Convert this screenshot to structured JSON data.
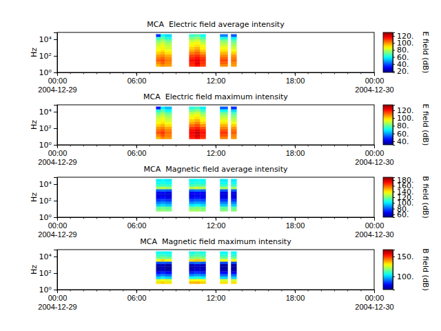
{
  "chart_data": [
    {
      "type": "heatmap",
      "title": "MCA  Electric field average intensity",
      "y_label": "Hz",
      "colorbar_label": "E field (dB)",
      "log": "y",
      "xlim": [
        "2004-12-29T00:00",
        "2004-12-30T00:00"
      ],
      "xticks": [
        {
          "value": "2004-12-29T00:00",
          "label": "00:00\n2004-12-29"
        },
        {
          "value": "2004-12-29T06:00",
          "label": "06:00"
        },
        {
          "value": "2004-12-29T12:00",
          "label": "12:00"
        },
        {
          "value": "2004-12-29T18:00",
          "label": "18:00"
        },
        {
          "value": "2004-12-30T00:00",
          "label": "00:00\n2004-12-30"
        }
      ],
      "ylim": [
        1,
        68000
      ],
      "yticks": [
        {
          "value": 1,
          "label": "10⁰"
        },
        {
          "value": 100,
          "label": "10²"
        },
        {
          "value": 10000,
          "label": "10⁴"
        }
      ],
      "x_start": [
        "2004-12-29T07:30",
        "2004-12-29T07:50",
        "2004-12-29T08:10",
        "2004-12-29T10:00",
        "2004-12-29T10:25",
        "2004-12-29T10:50",
        "2004-12-29T12:20",
        "2004-12-29T13:10"
      ],
      "x_end": [
        "2004-12-29T07:50",
        "2004-12-29T08:10",
        "2004-12-29T08:40",
        "2004-12-29T10:25",
        "2004-12-29T10:50",
        "2004-12-29T11:15",
        "2004-12-29T12:55",
        "2004-12-29T13:35"
      ],
      "y_edges": [
        5,
        10,
        20,
        40,
        80,
        160,
        320,
        630,
        1260,
        2500,
        5000,
        10000,
        20000,
        40000
      ],
      "values": [
        [
          95,
          100,
          98,
          110,
          115,
          108,
          100,
          98
        ],
        [
          100,
          105,
          100,
          112,
          118,
          110,
          105,
          100
        ],
        [
          105,
          108,
          102,
          115,
          118,
          112,
          108,
          104
        ],
        [
          102,
          105,
          100,
          112,
          115,
          110,
          105,
          102
        ],
        [
          98,
          100,
          96,
          108,
          110,
          105,
          100,
          98
        ],
        [
          92,
          95,
          90,
          102,
          105,
          98,
          95,
          92
        ],
        [
          88,
          90,
          86,
          96,
          100,
          92,
          90,
          86
        ],
        [
          85,
          88,
          82,
          92,
          95,
          88,
          86,
          82
        ],
        [
          82,
          85,
          80,
          88,
          90,
          85,
          82,
          78
        ],
        [
          78,
          82,
          76,
          85,
          88,
          80,
          78,
          74
        ],
        [
          72,
          76,
          70,
          80,
          82,
          75,
          72,
          68
        ],
        [
          65,
          70,
          62,
          72,
          75,
          68,
          62,
          58
        ],
        [
          35,
          60,
          55,
          65,
          68,
          60,
          45,
          40
        ]
      ],
      "clim": [
        16,
        130
      ],
      "cticks": [
        {
          "value": 20,
          "label": "20."
        },
        {
          "value": 40,
          "label": "40."
        },
        {
          "value": 60,
          "label": "60."
        },
        {
          "value": 80,
          "label": "80."
        },
        {
          "value": 100,
          "label": "100."
        },
        {
          "value": 120,
          "label": "120."
        }
      ]
    },
    {
      "type": "heatmap",
      "title": "MCA  Electric field maximum intensity",
      "y_label": "Hz",
      "colorbar_label": "E field (dB)",
      "log": "y",
      "xlim": [
        "2004-12-29T00:00",
        "2004-12-30T00:00"
      ],
      "xticks": [
        {
          "value": "2004-12-29T00:00",
          "label": "00:00\n2004-12-29"
        },
        {
          "value": "2004-12-29T06:00",
          "label": "06:00"
        },
        {
          "value": "2004-12-29T12:00",
          "label": "12:00"
        },
        {
          "value": "2004-12-29T18:00",
          "label": "18:00"
        },
        {
          "value": "2004-12-30T00:00",
          "label": "00:00\n2004-12-30"
        }
      ],
      "ylim": [
        1,
        68000
      ],
      "yticks": [
        {
          "value": 1,
          "label": "10⁰"
        },
        {
          "value": 100,
          "label": "10²"
        },
        {
          "value": 10000,
          "label": "10⁴"
        }
      ],
      "x_start": [
        "2004-12-29T07:30",
        "2004-12-29T07:50",
        "2004-12-29T08:10",
        "2004-12-29T10:00",
        "2004-12-29T10:25",
        "2004-12-29T10:50",
        "2004-12-29T12:20",
        "2004-12-29T13:10"
      ],
      "x_end": [
        "2004-12-29T07:50",
        "2004-12-29T08:10",
        "2004-12-29T08:40",
        "2004-12-29T10:25",
        "2004-12-29T10:50",
        "2004-12-29T11:15",
        "2004-12-29T12:55",
        "2004-12-29T13:35"
      ],
      "y_edges": [
        5,
        10,
        20,
        40,
        80,
        160,
        320,
        630,
        1260,
        2500,
        5000,
        10000,
        20000,
        40000
      ],
      "values": [
        [
          103,
          108,
          106,
          118,
          122,
          116,
          108,
          106
        ],
        [
          108,
          113,
          108,
          120,
          125,
          118,
          113,
          108
        ],
        [
          113,
          116,
          110,
          122,
          126,
          120,
          116,
          112
        ],
        [
          110,
          113,
          108,
          120,
          123,
          118,
          113,
          110
        ],
        [
          106,
          108,
          104,
          116,
          118,
          113,
          108,
          106
        ],
        [
          100,
          103,
          98,
          110,
          113,
          106,
          103,
          100
        ],
        [
          96,
          98,
          94,
          104,
          108,
          100,
          98,
          94
        ],
        [
          93,
          96,
          90,
          100,
          103,
          96,
          94,
          90
        ],
        [
          90,
          93,
          88,
          96,
          98,
          93,
          90,
          86
        ],
        [
          86,
          90,
          84,
          93,
          96,
          88,
          86,
          82
        ],
        [
          80,
          84,
          78,
          88,
          90,
          83,
          80,
          76
        ],
        [
          73,
          78,
          70,
          80,
          83,
          76,
          70,
          66
        ],
        [
          45,
          68,
          63,
          73,
          76,
          68,
          53,
          48
        ]
      ],
      "clim": [
        31,
        134
      ],
      "cticks": [
        {
          "value": 40,
          "label": "40."
        },
        {
          "value": 60,
          "label": "60."
        },
        {
          "value": 80,
          "label": "80."
        },
        {
          "value": 100,
          "label": "100."
        },
        {
          "value": 120,
          "label": "120."
        }
      ]
    },
    {
      "type": "heatmap",
      "title": "MCA  Magnetic field average intensity",
      "y_label": "Hz",
      "colorbar_label": "B field (dB)",
      "log": "y",
      "xlim": [
        "2004-12-29T00:00",
        "2004-12-30T00:00"
      ],
      "xticks": [
        {
          "value": "2004-12-29T00:00",
          "label": "00:00\n2004-12-29"
        },
        {
          "value": "2004-12-29T06:00",
          "label": "06:00"
        },
        {
          "value": "2004-12-29T12:00",
          "label": "12:00"
        },
        {
          "value": "2004-12-29T18:00",
          "label": "18:00"
        },
        {
          "value": "2004-12-30T00:00",
          "label": "00:00\n2004-12-30"
        }
      ],
      "ylim": [
        1,
        68000
      ],
      "yticks": [
        {
          "value": 1,
          "label": "10⁰"
        },
        {
          "value": 100,
          "label": "10²"
        },
        {
          "value": 10000,
          "label": "10⁴"
        }
      ],
      "x_start": [
        "2004-12-29T07:30",
        "2004-12-29T07:50",
        "2004-12-29T08:10",
        "2004-12-29T10:00",
        "2004-12-29T10:25",
        "2004-12-29T10:50",
        "2004-12-29T12:20",
        "2004-12-29T13:10"
      ],
      "x_end": [
        "2004-12-29T07:50",
        "2004-12-29T08:10",
        "2004-12-29T08:40",
        "2004-12-29T10:25",
        "2004-12-29T10:50",
        "2004-12-29T11:15",
        "2004-12-29T12:55",
        "2004-12-29T13:35"
      ],
      "y_edges": [
        5,
        10,
        20,
        40,
        80,
        160,
        320,
        630,
        1260,
        2500,
        5000,
        10000,
        20000,
        40000
      ],
      "values": [
        [
          120,
          122,
          120,
          124,
          125,
          122,
          120,
          120
        ],
        [
          115,
          118,
          115,
          118,
          120,
          118,
          115,
          115
        ],
        [
          95,
          98,
          95,
          100,
          102,
          98,
          95,
          95
        ],
        [
          85,
          88,
          85,
          88,
          90,
          88,
          85,
          85
        ],
        [
          75,
          78,
          75,
          78,
          80,
          78,
          75,
          75
        ],
        [
          65,
          68,
          65,
          68,
          70,
          68,
          65,
          65
        ],
        [
          62,
          64,
          62,
          64,
          65,
          64,
          62,
          62
        ],
        [
          65,
          66,
          64,
          66,
          68,
          66,
          64,
          64
        ],
        [
          80,
          82,
          80,
          82,
          84,
          82,
          80,
          80
        ],
        [
          125,
          128,
          125,
          128,
          130,
          128,
          125,
          125
        ],
        [
          110,
          112,
          110,
          112,
          114,
          112,
          110,
          110
        ],
        [
          105,
          106,
          104,
          106,
          108,
          106,
          104,
          104
        ],
        [
          100,
          102,
          100,
          102,
          104,
          102,
          100,
          100
        ]
      ],
      "clim": [
        50,
        190
      ],
      "cticks": [
        {
          "value": 60,
          "label": "60."
        },
        {
          "value": 80,
          "label": "80."
        },
        {
          "value": 100,
          "label": "100."
        },
        {
          "value": 120,
          "label": "120."
        },
        {
          "value": 140,
          "label": "140."
        },
        {
          "value": 160,
          "label": "160."
        },
        {
          "value": 180,
          "label": "180."
        }
      ]
    },
    {
      "type": "heatmap",
      "title": "MCA  Magnetic field maximum intensity",
      "y_label": "Hz",
      "colorbar_label": "B field (dB)",
      "log": "y",
      "xlim": [
        "2004-12-29T00:00",
        "2004-12-30T00:00"
      ],
      "xticks": [
        {
          "value": "2004-12-29T00:00",
          "label": "00:00\n2004-12-29"
        },
        {
          "value": "2004-12-29T06:00",
          "label": "06:00"
        },
        {
          "value": "2004-12-29T12:00",
          "label": "12:00"
        },
        {
          "value": "2004-12-29T18:00",
          "label": "18:00"
        },
        {
          "value": "2004-12-30T00:00",
          "label": "00:00\n2004-12-30"
        }
      ],
      "ylim": [
        1,
        68000
      ],
      "yticks": [
        {
          "value": 1,
          "label": "10⁰"
        },
        {
          "value": 100,
          "label": "10²"
        },
        {
          "value": 10000,
          "label": "10⁴"
        }
      ],
      "x_start": [
        "2004-12-29T07:30",
        "2004-12-29T07:50",
        "2004-12-29T08:10",
        "2004-12-29T10:00",
        "2004-12-29T10:25",
        "2004-12-29T10:50",
        "2004-12-29T12:20",
        "2004-12-29T13:10"
      ],
      "x_end": [
        "2004-12-29T07:50",
        "2004-12-29T08:10",
        "2004-12-29T08:40",
        "2004-12-29T10:25",
        "2004-12-29T10:50",
        "2004-12-29T11:15",
        "2004-12-29T12:55",
        "2004-12-29T13:35"
      ],
      "y_edges": [
        5,
        10,
        20,
        40,
        80,
        160,
        320,
        630,
        1260,
        2500,
        5000,
        10000,
        20000,
        40000
      ],
      "values": [
        [
          132,
          134,
          132,
          136,
          137,
          134,
          132,
          132
        ],
        [
          125,
          128,
          125,
          128,
          130,
          128,
          125,
          125
        ],
        [
          100,
          103,
          100,
          105,
          107,
          103,
          100,
          100
        ],
        [
          90,
          93,
          90,
          93,
          95,
          93,
          90,
          90
        ],
        [
          80,
          83,
          80,
          83,
          85,
          83,
          80,
          80
        ],
        [
          72,
          74,
          72,
          74,
          76,
          74,
          72,
          72
        ],
        [
          70,
          72,
          70,
          72,
          73,
          72,
          70,
          70
        ],
        [
          72,
          73,
          71,
          73,
          75,
          73,
          71,
          71
        ],
        [
          86,
          88,
          86,
          88,
          90,
          88,
          86,
          86
        ],
        [
          130,
          133,
          130,
          133,
          135,
          133,
          130,
          130
        ],
        [
          115,
          117,
          115,
          117,
          119,
          117,
          115,
          115
        ],
        [
          110,
          111,
          109,
          111,
          113,
          111,
          109,
          109
        ],
        [
          105,
          107,
          105,
          107,
          109,
          107,
          105,
          105
        ]
      ],
      "clim": [
        67,
        167
      ],
      "cticks": [
        {
          "value": 100,
          "label": "100."
        },
        {
          "value": 150,
          "label": "150."
        }
      ]
    }
  ]
}
